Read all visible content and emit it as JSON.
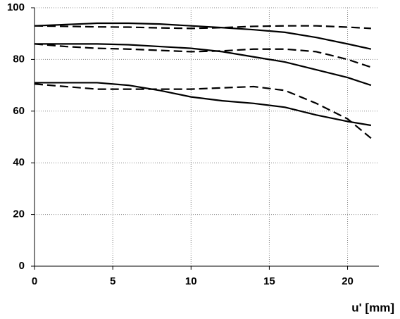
{
  "chart_data": {
    "type": "line",
    "x_label": "u' [mm]",
    "x": [
      0,
      2,
      4,
      6,
      8,
      10,
      12,
      14,
      16,
      18,
      20,
      21.5
    ],
    "series": [
      {
        "color": "#000000",
        "dash": false,
        "values": [
          93,
          93.5,
          94,
          94,
          93.7,
          93,
          92.3,
          91.5,
          90.5,
          88.5,
          86,
          84
        ]
      },
      {
        "color": "#000000",
        "dash": true,
        "values": [
          93,
          92.8,
          92.6,
          92.5,
          92.2,
          92,
          92.3,
          92.8,
          93,
          93,
          92.5,
          92
        ]
      },
      {
        "color": "#000000",
        "dash": false,
        "values": [
          86,
          86,
          86,
          85.7,
          85,
          84.3,
          83,
          81,
          79,
          76,
          73,
          70
        ]
      },
      {
        "color": "#000000",
        "dash": true,
        "values": [
          86,
          85,
          84.3,
          84,
          83.5,
          83,
          83.3,
          84,
          84,
          83,
          80,
          77
        ]
      },
      {
        "color": "#000000",
        "dash": false,
        "values": [
          71,
          71,
          71,
          70,
          68,
          65.5,
          64,
          63,
          61.5,
          58.5,
          56,
          54.5
        ]
      },
      {
        "color": "#000000",
        "dash": true,
        "values": [
          70.5,
          69.5,
          68.5,
          68.5,
          68.5,
          68.5,
          69,
          69.5,
          68,
          63,
          57,
          49.5
        ]
      }
    ],
    "xlim": [
      0,
      22
    ],
    "xticks": [
      0,
      5,
      10,
      15,
      20
    ],
    "ylim": [
      0,
      100
    ],
    "yticks": [
      0,
      20,
      40,
      60,
      80,
      100
    ],
    "grid": true
  }
}
